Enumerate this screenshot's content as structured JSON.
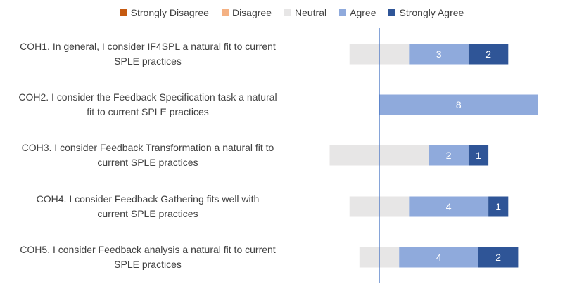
{
  "colors": {
    "Strongly Disagree": "#c55a11",
    "Disagree": "#f4b183",
    "Neutral": "#e7e6e6",
    "Agree": "#8faadc",
    "Strongly Agree": "#2f5597",
    "axis": "#4472c4"
  },
  "chart_data": {
    "type": "bar",
    "orientation": "horizontal",
    "stacked": "diverging",
    "legend_position": "top",
    "categories": [
      [
        "COH1. In general, I consider IF4SPL a natural fit to current",
        "SPLE practices"
      ],
      [
        "COH2. I consider the Feedback Specification task  a natural",
        "fit to current SPLE practices"
      ],
      [
        "COH3. I consider Feedback Transformation  a natural fit to",
        "current SPLE practices"
      ],
      [
        "COH4. I consider Feedback Gathering  fits well with",
        "current SPLE practices"
      ],
      [
        "COH5. I consider Feedback analysis a natural fit to current",
        "SPLE practices"
      ]
    ],
    "series": [
      {
        "name": "Strongly Disagree",
        "values": [
          0,
          0,
          0,
          0,
          0
        ]
      },
      {
        "name": "Disagree",
        "values": [
          0,
          0,
          0,
          0,
          0
        ]
      },
      {
        "name": "Neutral",
        "values": [
          3,
          0,
          5,
          3,
          2
        ]
      },
      {
        "name": "Agree",
        "values": [
          3,
          8,
          2,
          4,
          4
        ]
      },
      {
        "name": "Strongly Agree",
        "values": [
          2,
          0,
          1,
          1,
          2
        ]
      }
    ],
    "data_labels": [
      {
        "Agree": "3",
        "Strongly Agree": "2"
      },
      {
        "Agree": "8"
      },
      {
        "Agree": "2",
        "Strongly Agree": "1"
      },
      {
        "Agree": "4",
        "Strongly Agree": "1"
      },
      {
        "Agree": "4",
        "Strongly Agree": "2"
      }
    ]
  }
}
